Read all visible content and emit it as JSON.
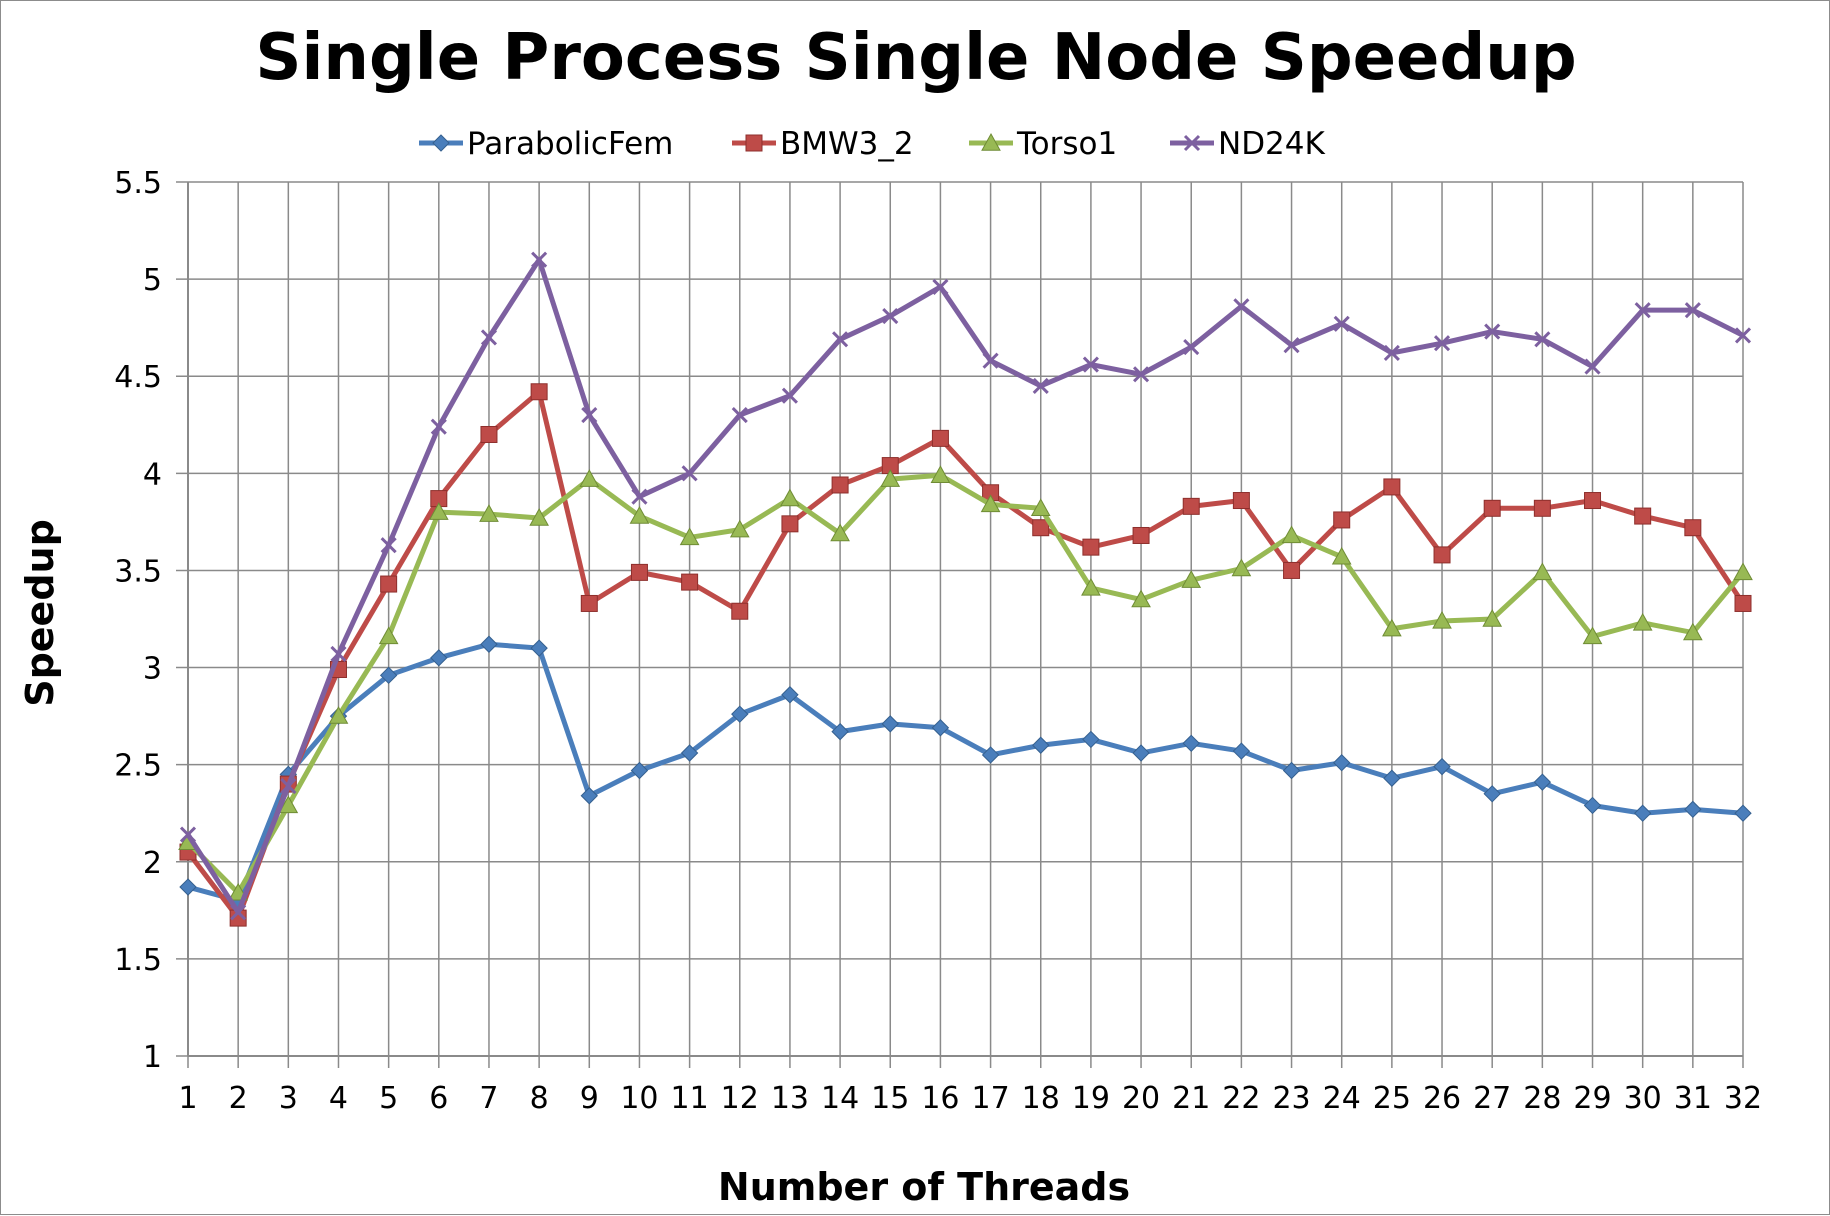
{
  "chart_data": {
    "type": "line",
    "title": "Single Process Single Node Speedup",
    "xlabel": "Number of Threads",
    "ylabel": "Speedup",
    "x": [
      1,
      2,
      3,
      4,
      5,
      6,
      7,
      8,
      9,
      10,
      11,
      12,
      13,
      14,
      15,
      16,
      17,
      18,
      19,
      20,
      21,
      22,
      23,
      24,
      25,
      26,
      27,
      28,
      29,
      30,
      31,
      32
    ],
    "ylim": [
      1,
      5.5
    ],
    "yticks": [
      1,
      1.5,
      2,
      2.5,
      3,
      3.5,
      4,
      4.5,
      5,
      5.5
    ],
    "ytick_labels": [
      "1",
      "1.5",
      "2",
      "2.5",
      "3",
      "3.5",
      "4",
      "4.5",
      "5",
      "5.5"
    ],
    "grid": true,
    "legend_position": "top",
    "series": [
      {
        "name": "ParabolicFem",
        "color": "#4a7ebb",
        "marker": "diamond",
        "values": [
          1.87,
          1.8,
          2.45,
          2.75,
          2.96,
          3.05,
          3.12,
          3.1,
          2.34,
          2.47,
          2.56,
          2.76,
          2.86,
          2.67,
          2.71,
          2.69,
          2.55,
          2.6,
          2.63,
          2.56,
          2.61,
          2.57,
          2.47,
          2.51,
          2.43,
          2.49,
          2.35,
          2.41,
          2.29,
          2.25,
          2.27,
          2.25
        ]
      },
      {
        "name": "BMW3_2",
        "color": "#be4b48",
        "marker": "square",
        "values": [
          2.05,
          1.71,
          2.4,
          2.99,
          3.43,
          3.87,
          4.2,
          4.42,
          3.33,
          3.49,
          3.44,
          3.29,
          3.74,
          3.94,
          4.04,
          4.18,
          3.9,
          3.72,
          3.62,
          3.68,
          3.83,
          3.86,
          3.5,
          3.76,
          3.93,
          3.58,
          3.82,
          3.82,
          3.86,
          3.78,
          3.72,
          3.33
        ]
      },
      {
        "name": "Torso1",
        "color": "#98b954",
        "marker": "triangle",
        "values": [
          2.1,
          1.84,
          2.29,
          2.75,
          3.16,
          3.8,
          3.79,
          3.77,
          3.97,
          3.78,
          3.67,
          3.71,
          3.87,
          3.69,
          3.97,
          3.99,
          3.84,
          3.82,
          3.41,
          3.35,
          3.45,
          3.51,
          3.68,
          3.57,
          3.2,
          3.24,
          3.25,
          3.49,
          3.16,
          3.23,
          3.18,
          3.49
        ]
      },
      {
        "name": "ND24K",
        "color": "#7d60a0",
        "marker": "x",
        "values": [
          2.14,
          1.74,
          2.39,
          3.07,
          3.63,
          4.24,
          4.7,
          5.1,
          4.3,
          3.88,
          4.0,
          4.3,
          4.4,
          4.69,
          4.81,
          4.96,
          4.58,
          4.45,
          4.56,
          4.51,
          4.65,
          4.86,
          4.66,
          4.77,
          4.62,
          4.67,
          4.73,
          4.69,
          4.55,
          4.84,
          4.84,
          4.71
        ]
      }
    ]
  }
}
